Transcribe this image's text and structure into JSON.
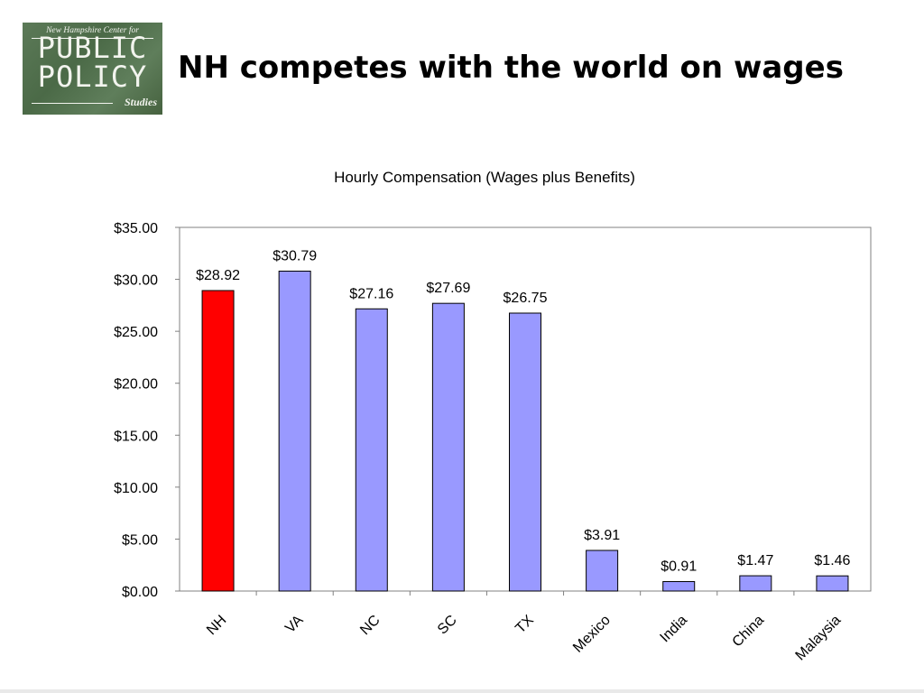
{
  "slide": {
    "title": "NH competes with the world on wages"
  },
  "logo": {
    "tagline": "New Hampshire Center for",
    "word1": "PUBLIC",
    "word2": "POLICY",
    "sub": "Studies"
  },
  "chart_data": {
    "type": "bar",
    "title": "Hourly Compensation (Wages plus Benefits)",
    "xlabel": "",
    "ylabel": "",
    "categories": [
      "NH",
      "VA",
      "NC",
      "SC",
      "TX",
      "Mexico",
      "India",
      "China",
      "Malaysia"
    ],
    "values": [
      28.92,
      30.79,
      27.16,
      27.69,
      26.75,
      3.91,
      0.91,
      1.47,
      1.46
    ],
    "data_labels": [
      "$28.92",
      "$30.79",
      "$27.16",
      "$27.69",
      "$26.75",
      "$3.91",
      "$0.91",
      "$1.47",
      "$1.46"
    ],
    "yticks": [
      "$0.00",
      "$5.00",
      "$10.00",
      "$15.00",
      "$20.00",
      "$25.00",
      "$30.00",
      "$35.00"
    ],
    "ylim": [
      0,
      35
    ],
    "grid": false,
    "legend": "none",
    "colors": {
      "highlight": "#ff0000",
      "bar": "#9999ff",
      "outline": "#000000"
    },
    "highlight_category": "NH"
  }
}
